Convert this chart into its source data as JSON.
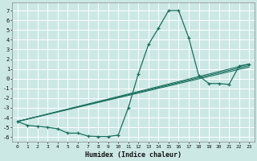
{
  "xlabel": "Humidex (Indice chaleur)",
  "xlim": [
    -0.5,
    23.5
  ],
  "ylim": [
    -6.5,
    7.8
  ],
  "xticks": [
    0,
    1,
    2,
    3,
    4,
    5,
    6,
    7,
    8,
    9,
    10,
    11,
    12,
    13,
    14,
    15,
    16,
    17,
    18,
    19,
    20,
    21,
    22,
    23
  ],
  "yticks": [
    -6,
    -5,
    -4,
    -3,
    -2,
    -1,
    0,
    1,
    2,
    3,
    4,
    5,
    6,
    7
  ],
  "background_color": "#cce8e4",
  "grid_color": "#ffffff",
  "line_color": "#1a7060",
  "main_line": {
    "x": [
      0,
      1,
      2,
      3,
      4,
      5,
      6,
      7,
      8,
      9,
      10,
      11,
      12,
      13,
      14,
      15,
      16,
      17,
      18,
      19,
      20,
      21,
      22,
      23
    ],
    "y": [
      -4.4,
      -4.8,
      -4.9,
      -5.0,
      -5.15,
      -5.6,
      -5.6,
      -5.9,
      -5.95,
      -5.95,
      -5.8,
      -3.0,
      0.5,
      3.5,
      5.2,
      7.0,
      7.0,
      4.2,
      0.3,
      -0.5,
      -0.5,
      -0.6,
      1.3,
      1.5
    ]
  },
  "diag_lines": [
    {
      "x": [
        0,
        23
      ],
      "y": [
        -4.4,
        1.5
      ]
    },
    {
      "x": [
        0,
        23
      ],
      "y": [
        -4.4,
        1.35
      ]
    },
    {
      "x": [
        0,
        23
      ],
      "y": [
        -4.4,
        1.2
      ]
    }
  ]
}
